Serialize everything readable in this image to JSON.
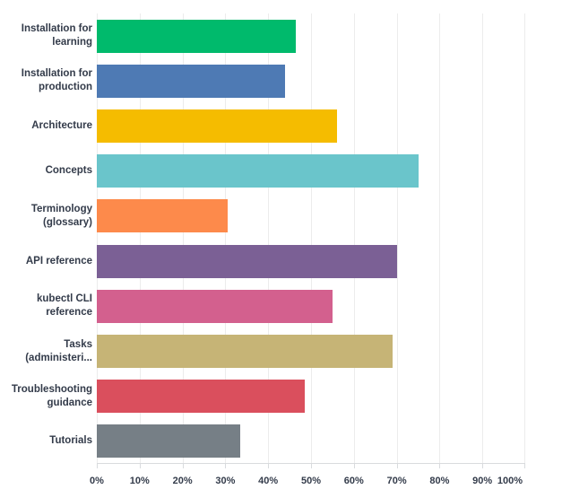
{
  "chart_data": {
    "type": "bar",
    "orientation": "horizontal",
    "title": "",
    "xlabel": "",
    "ylabel": "",
    "grid": "vertical-only",
    "legend_position": "none",
    "xlim": [
      0,
      100
    ],
    "x_tick_labels": [
      "0%",
      "10%",
      "20%",
      "30%",
      "40%",
      "50%",
      "60%",
      "70%",
      "80%",
      "90%",
      "100%"
    ],
    "categories": [
      "Installation for learning",
      "Installation for production",
      "Architecture",
      "Concepts",
      "Terminology (glossary)",
      "API reference",
      "kubectl CLI reference",
      "Tasks (administeri...",
      "Troubleshooting guidance",
      "Tutorials"
    ],
    "values": [
      46.5,
      44,
      56,
      75,
      30.5,
      70,
      55,
      69,
      48.5,
      33.5
    ],
    "value_unit": "%",
    "bar_colors": [
      "#00ba6c",
      "#4e7ab4",
      "#f5bc00",
      "#6ac5cb",
      "#fd8a4b",
      "#7b6095",
      "#d3608e",
      "#c6b476",
      "#da4f5d",
      "#767f86"
    ],
    "text_color": "#333b4a",
    "gridline_color": "#ececec",
    "axis_line_color": "#d9dbde",
    "background_color": "#ffffff"
  }
}
